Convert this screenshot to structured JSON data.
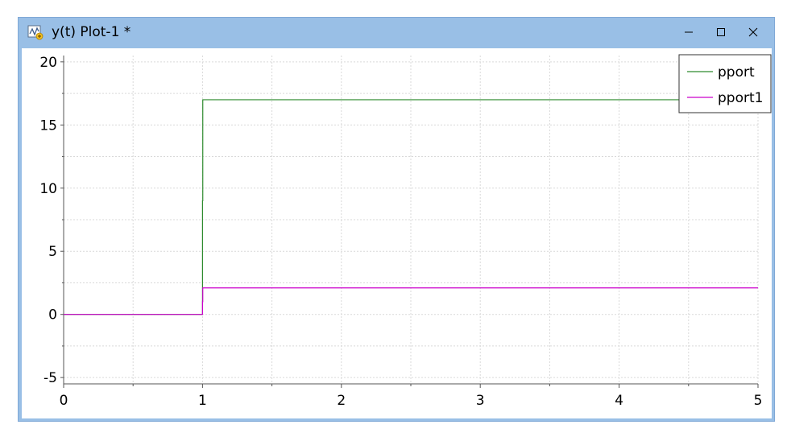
{
  "window": {
    "title": "y(t) Plot-1 *",
    "icons": {
      "app": "plot-window-icon",
      "minimize": "minimize-icon",
      "maximize": "maximize-icon",
      "close": "close-icon"
    }
  },
  "chart_data": {
    "type": "line",
    "title": "",
    "xlabel": "",
    "ylabel": "",
    "xlim": [
      0,
      5
    ],
    "ylim": [
      -5.5,
      20.5
    ],
    "xticks": [
      0,
      1,
      2,
      3,
      4,
      5
    ],
    "yticks": [
      -5,
      0,
      5,
      10,
      15,
      20
    ],
    "grid": true,
    "legend_position": "top-right",
    "series": [
      {
        "name": "pport",
        "color": "#2e8b2e",
        "x": [
          0,
          1.0,
          1.0,
          1.002,
          1.002,
          5
        ],
        "y": [
          0,
          0,
          9,
          9,
          17,
          17
        ]
      },
      {
        "name": "pport1",
        "color": "#cc00cc",
        "x": [
          0,
          1.0,
          1.0,
          1.002,
          1.002,
          5
        ],
        "y": [
          0,
          0,
          1,
          1,
          2.1,
          2.1
        ]
      }
    ]
  }
}
